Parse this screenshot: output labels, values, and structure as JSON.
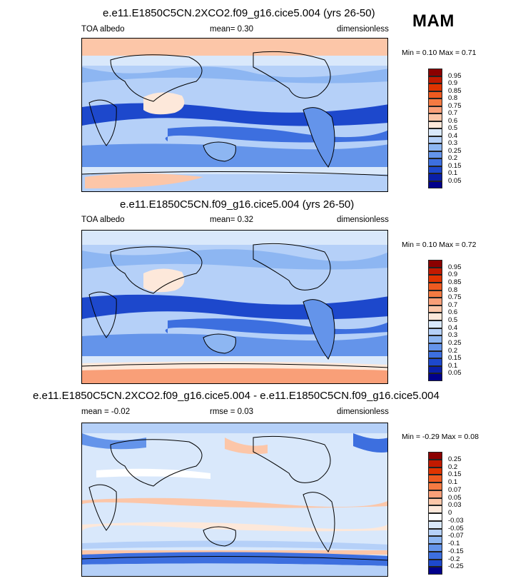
{
  "season": "MAM",
  "panels": [
    {
      "title": "e.e11.E1850C5CN.2XCO2.f09_g16.cice5.004 (yrs 26-50)",
      "left_label": "TOA albedo",
      "center_label": "mean=   0.30",
      "right_label": "dimensionless",
      "minmax": "Min =   0.10 Max =   0.71",
      "colorbar": {
        "labels": [
          "0.95",
          "0.9",
          "0.85",
          "0.8",
          "0.75",
          "0.7",
          "0.6",
          "0.5",
          "0.4",
          "0.3",
          "0.25",
          "0.2",
          "0.15",
          "0.1",
          "0.05"
        ],
        "colors": [
          "#8b0000",
          "#c21a00",
          "#e03400",
          "#ee5a20",
          "#f47a42",
          "#f99f78",
          "#fcc6a8",
          "#fde8da",
          "#d9e8fb",
          "#b5d0f8",
          "#8db6f2",
          "#6494ea",
          "#3d6fdf",
          "#1d48cc",
          "#0a1fa8",
          "#01008b"
        ]
      }
    },
    {
      "title": "e.e11.E1850C5CN.f09_g16.cice5.004 (yrs 26-50)",
      "left_label": "TOA albedo",
      "center_label": "mean=   0.32",
      "right_label": "dimensionless",
      "minmax": "Min =   0.10 Max =   0.72",
      "colorbar": {
        "labels": [
          "0.95",
          "0.9",
          "0.85",
          "0.8",
          "0.75",
          "0.7",
          "0.6",
          "0.5",
          "0.4",
          "0.3",
          "0.25",
          "0.2",
          "0.15",
          "0.1",
          "0.05"
        ],
        "colors": [
          "#8b0000",
          "#c21a00",
          "#e03400",
          "#ee5a20",
          "#f47a42",
          "#f99f78",
          "#fcc6a8",
          "#fde8da",
          "#d9e8fb",
          "#b5d0f8",
          "#8db6f2",
          "#6494ea",
          "#3d6fdf",
          "#1d48cc",
          "#0a1fa8",
          "#01008b"
        ]
      }
    },
    {
      "title": "e.e11.E1850C5CN.2XCO2.f09_g16.cice5.004 - e.e11.E1850C5CN.f09_g16.cice5.004",
      "left_label": "mean =  -0.02",
      "center_label": "rmse =   0.03",
      "right_label": "dimensionless",
      "minmax": "Min =  -0.29 Max =   0.08",
      "colorbar": {
        "labels": [
          "0.25",
          "0.2",
          "0.15",
          "0.1",
          "0.07",
          "0.05",
          "0.03",
          "0",
          "-0.03",
          "-0.05",
          "-0.07",
          "-0.1",
          "-0.15",
          "-0.2",
          "-0.25"
        ],
        "colors": [
          "#8b0000",
          "#c21a00",
          "#e03400",
          "#ee5a20",
          "#f47a42",
          "#f99f78",
          "#fcc6a8",
          "#fde8da",
          "#ffffff",
          "#d9e8fb",
          "#b5d0f8",
          "#8db6f2",
          "#6494ea",
          "#3d6fdf",
          "#1d48cc",
          "#01008b"
        ]
      }
    }
  ]
}
